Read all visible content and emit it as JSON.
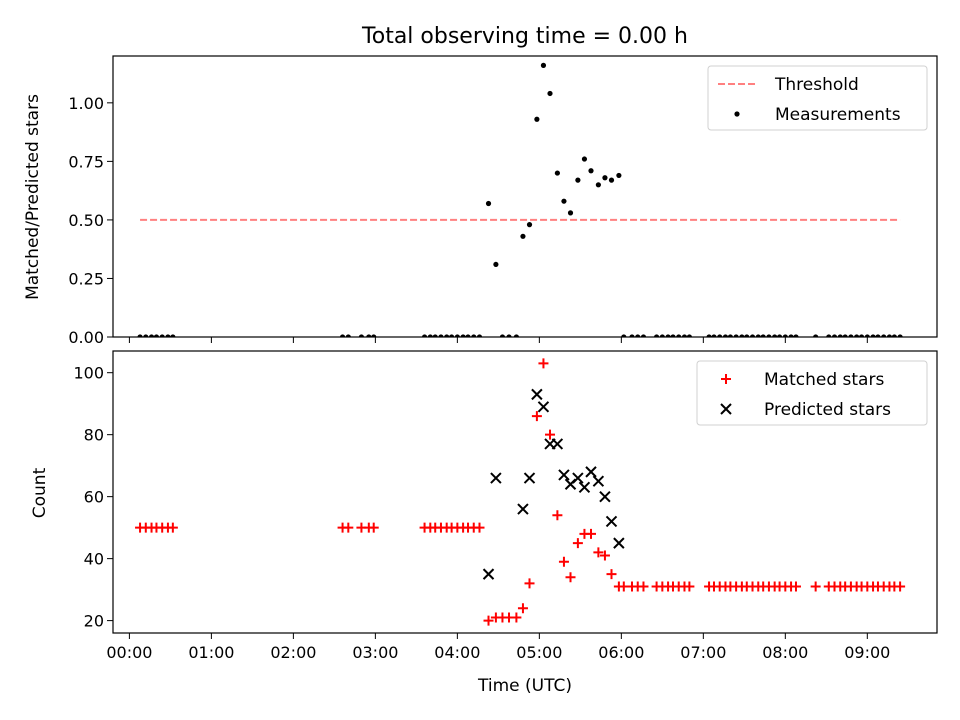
{
  "chart_data": [
    {
      "type": "scatter",
      "title": "Total observing time = 0.00 h",
      "ylabel": "Matched/Predicted stars",
      "ylim": [
        0,
        1.2
      ],
      "xlim": [
        -0.2,
        9.85
      ],
      "yticks": [
        0.0,
        0.25,
        0.5,
        0.75,
        1.0
      ],
      "ytick_labels": [
        "0.00",
        "0.25",
        "0.50",
        "0.75",
        "1.00"
      ],
      "legend_position": "top-right",
      "series": [
        {
          "name": "Threshold",
          "kind": "line",
          "style": "dashed",
          "color": "#ff8080",
          "x": [
            0.13,
            9.4
          ],
          "y": [
            0.5,
            0.5
          ]
        },
        {
          "name": "Measurements",
          "kind": "scatter",
          "color": "#000000",
          "x": [
            0.13,
            0.2,
            0.27,
            0.33,
            0.4,
            0.47,
            0.53,
            2.6,
            2.67,
            2.83,
            2.92,
            2.98,
            3.6,
            3.67,
            3.73,
            3.8,
            3.87,
            3.93,
            4.0,
            4.07,
            4.13,
            4.2,
            4.27,
            4.38,
            4.47,
            4.55,
            4.63,
            4.72,
            4.8,
            4.88,
            4.97,
            5.05,
            5.13,
            5.22,
            5.3,
            5.38,
            5.47,
            5.55,
            5.63,
            5.72,
            5.8,
            5.88,
            5.97,
            6.03,
            6.13,
            6.2,
            6.27,
            6.43,
            6.5,
            6.57,
            6.63,
            6.7,
            6.77,
            6.83,
            7.07,
            7.13,
            7.2,
            7.27,
            7.33,
            7.4,
            7.47,
            7.53,
            7.6,
            7.67,
            7.73,
            7.8,
            7.87,
            7.93,
            8.0,
            8.07,
            8.13,
            8.37,
            8.53,
            8.6,
            8.67,
            8.73,
            8.8,
            8.87,
            8.93,
            9.0,
            9.07,
            9.13,
            9.2,
            9.27,
            9.33,
            9.4
          ],
          "y": [
            0,
            0,
            0,
            0,
            0,
            0,
            0,
            0,
            0,
            0,
            0,
            0,
            0,
            0,
            0,
            0,
            0,
            0,
            0,
            0,
            0,
            0,
            0,
            0.57,
            0.31,
            0,
            0,
            0,
            0.43,
            0.48,
            0.93,
            1.16,
            1.04,
            0.7,
            0.58,
            0.53,
            0.67,
            0.76,
            0.71,
            0.65,
            0.68,
            0.67,
            0.69,
            0,
            0,
            0,
            0,
            0,
            0,
            0,
            0,
            0,
            0,
            0,
            0,
            0,
            0,
            0,
            0,
            0,
            0,
            0,
            0,
            0,
            0,
            0,
            0,
            0,
            0,
            0,
            0,
            0,
            0,
            0,
            0,
            0,
            0,
            0,
            0,
            0,
            0,
            0,
            0,
            0,
            0,
            0
          ]
        }
      ]
    },
    {
      "type": "scatter",
      "xlabel": "Time (UTC)",
      "ylabel": "Count",
      "ylim": [
        16,
        107
      ],
      "xlim": [
        -0.2,
        9.85
      ],
      "yticks": [
        20,
        40,
        60,
        80,
        100
      ],
      "ytick_labels": [
        "20",
        "40",
        "60",
        "80",
        "100"
      ],
      "xticks": [
        0,
        1,
        2,
        3,
        4,
        5,
        6,
        7,
        8,
        9
      ],
      "xtick_labels": [
        "00:00",
        "01:00",
        "02:00",
        "03:00",
        "04:00",
        "05:00",
        "06:00",
        "07:00",
        "08:00",
        "09:00"
      ],
      "legend_position": "top-right",
      "series": [
        {
          "name": "Matched stars",
          "kind": "scatter",
          "marker": "plus",
          "color": "#ff0000",
          "x": [
            0.13,
            0.2,
            0.27,
            0.33,
            0.4,
            0.47,
            0.53,
            2.6,
            2.67,
            2.83,
            2.92,
            2.98,
            3.6,
            3.67,
            3.73,
            3.8,
            3.87,
            3.93,
            4.0,
            4.07,
            4.13,
            4.2,
            4.27,
            4.38,
            4.47,
            4.55,
            4.63,
            4.72,
            4.8,
            4.88,
            4.97,
            5.05,
            5.13,
            5.22,
            5.3,
            5.38,
            5.47,
            5.55,
            5.63,
            5.72,
            5.8,
            5.88,
            5.97,
            6.03,
            6.13,
            6.2,
            6.27,
            6.43,
            6.5,
            6.57,
            6.63,
            6.7,
            6.77,
            6.83,
            7.07,
            7.13,
            7.2,
            7.27,
            7.33,
            7.4,
            7.47,
            7.53,
            7.6,
            7.67,
            7.73,
            7.8,
            7.87,
            7.93,
            8.0,
            8.07,
            8.13,
            8.37,
            8.53,
            8.6,
            8.67,
            8.73,
            8.8,
            8.87,
            8.93,
            9.0,
            9.07,
            9.13,
            9.2,
            9.27,
            9.33,
            9.4
          ],
          "y": [
            50,
            50,
            50,
            50,
            50,
            50,
            50,
            50,
            50,
            50,
            50,
            50,
            50,
            50,
            50,
            50,
            50,
            50,
            50,
            50,
            50,
            50,
            50,
            20,
            21,
            21,
            21,
            21,
            24,
            32,
            86,
            103,
            80,
            54,
            39,
            34,
            45,
            48,
            48,
            42,
            41,
            35,
            31,
            31,
            31,
            31,
            31,
            31,
            31,
            31,
            31,
            31,
            31,
            31,
            31,
            31,
            31,
            31,
            31,
            31,
            31,
            31,
            31,
            31,
            31,
            31,
            31,
            31,
            31,
            31,
            31,
            31,
            31,
            31,
            31,
            31,
            31,
            31,
            31,
            31,
            31,
            31,
            31,
            31,
            31,
            31
          ]
        },
        {
          "name": "Predicted stars",
          "kind": "scatter",
          "marker": "x",
          "color": "#000000",
          "x": [
            4.38,
            4.47,
            4.8,
            4.88,
            4.97,
            5.05,
            5.13,
            5.22,
            5.3,
            5.38,
            5.47,
            5.55,
            5.63,
            5.72,
            5.8,
            5.88,
            5.97
          ],
          "y": [
            35,
            66,
            56,
            66,
            93,
            89,
            77,
            77,
            67,
            64,
            66,
            63,
            68,
            65,
            60,
            52,
            45
          ]
        }
      ]
    }
  ]
}
